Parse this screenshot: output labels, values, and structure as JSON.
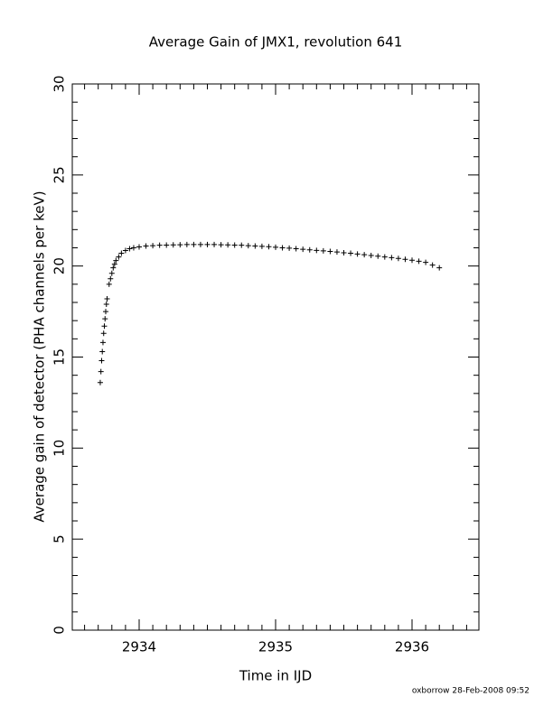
{
  "chart_data": {
    "type": "scatter",
    "title": "Average Gain of JMX1, revolution 641",
    "x_label": "Time in IJD",
    "y_label": "Average gain of detector (PHA channels per keV)",
    "footer": "oxborrow 28-Feb-2008 09:52",
    "marker": "+",
    "color": "#000000",
    "xlim": [
      2933.51,
      2936.49
    ],
    "ylim": [
      0,
      30
    ],
    "xticks": [
      2934,
      2935,
      2936
    ],
    "yticks": [
      0,
      5,
      10,
      15,
      20,
      25,
      30
    ],
    "x_minor_ticks": [
      2933.6,
      2933.7,
      2933.8,
      2933.9,
      2934.1,
      2934.2,
      2934.3,
      2934.4,
      2934.5,
      2934.6,
      2934.7,
      2934.8,
      2934.9,
      2935.1,
      2935.2,
      2935.3,
      2935.4,
      2935.5,
      2935.6,
      2935.7,
      2935.8,
      2935.9,
      2936.1,
      2936.2,
      2936.3,
      2936.4
    ],
    "y_minor_ticks": [
      1,
      2,
      3,
      4,
      6,
      7,
      8,
      9,
      11,
      12,
      13,
      14,
      16,
      17,
      18,
      19,
      21,
      22,
      23,
      24,
      26,
      27,
      28,
      29
    ],
    "x": [
      2933.715,
      2933.72,
      2933.725,
      2933.73,
      2933.735,
      2933.74,
      2933.745,
      2933.75,
      2933.755,
      2933.76,
      2933.765,
      2933.78,
      2933.79,
      2933.8,
      2933.81,
      2933.82,
      2933.83,
      2933.85,
      2933.87,
      2933.9,
      2933.93,
      2933.96,
      2934.0,
      2934.05,
      2934.1,
      2934.15,
      2934.2,
      2934.25,
      2934.3,
      2934.35,
      2934.4,
      2934.45,
      2934.5,
      2934.55,
      2934.6,
      2934.65,
      2934.7,
      2934.75,
      2934.8,
      2934.85,
      2934.9,
      2934.95,
      2935.0,
      2935.05,
      2935.1,
      2935.15,
      2935.2,
      2935.25,
      2935.3,
      2935.35,
      2935.4,
      2935.45,
      2935.5,
      2935.55,
      2935.6,
      2935.65,
      2935.7,
      2935.75,
      2935.8,
      2935.85,
      2935.9,
      2935.95,
      2936.0,
      2936.05,
      2936.1,
      2936.15,
      2936.2
    ],
    "values": [
      13.6,
      14.2,
      14.8,
      15.3,
      15.8,
      16.3,
      16.7,
      17.1,
      17.5,
      17.9,
      18.2,
      19.0,
      19.3,
      19.6,
      19.9,
      20.1,
      20.3,
      20.5,
      20.7,
      20.85,
      20.95,
      21.0,
      21.05,
      21.1,
      21.12,
      21.14,
      21.15,
      21.16,
      21.17,
      21.18,
      21.18,
      21.18,
      21.18,
      21.18,
      21.17,
      21.16,
      21.15,
      21.14,
      21.12,
      21.1,
      21.08,
      21.06,
      21.03,
      21.0,
      20.98,
      20.95,
      20.92,
      20.89,
      20.86,
      20.83,
      20.8,
      20.77,
      20.73,
      20.7,
      20.66,
      20.62,
      20.58,
      20.54,
      20.5,
      20.46,
      20.42,
      20.37,
      20.32,
      20.26,
      20.2,
      20.05,
      19.9
    ]
  }
}
